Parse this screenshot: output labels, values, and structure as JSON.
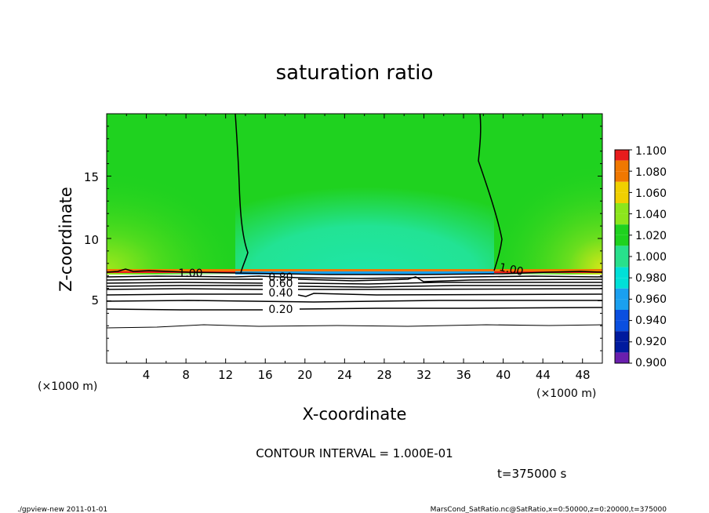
{
  "chart_data": {
    "type": "heatmap",
    "title": "saturation ratio",
    "xlabel": "X-coordinate",
    "ylabel": "Z-coordinate",
    "x_unit": "(×1000 m)",
    "y_unit": "(×1000 m)",
    "xlim": [
      0,
      50
    ],
    "ylim": [
      0,
      20
    ],
    "x_ticks": [
      "4",
      "8",
      "12",
      "16",
      "20",
      "24",
      "28",
      "32",
      "36",
      "40",
      "44",
      "48"
    ],
    "y_ticks": [
      "5",
      "10",
      "15"
    ],
    "colorbar": {
      "levels": [
        "0.900",
        "0.920",
        "0.940",
        "0.960",
        "0.980",
        "1.000",
        "1.020",
        "1.040",
        "1.060",
        "1.080",
        "1.100"
      ],
      "colors": [
        "#6a1fae",
        "#001a9e",
        "#0a4fe0",
        "#1aa0f0",
        "#00e0d8",
        "#28e08c",
        "#1fd21f",
        "#8ce61c",
        "#f0d000",
        "#f07800",
        "#e81c1c",
        "#f89090"
      ]
    },
    "contour_labels": [
      "1.00",
      "0.80",
      "0.60",
      "0.40",
      "0.20",
      "1.00"
    ],
    "contour_interval": "CONTOUR INTERVAL = 1.000E-01",
    "time": "t=375000 s",
    "footer_left": "./gpview-new  2011-01-01",
    "footer_right": "MarsCond_SatRatio.nc@SatRatio,x=0:50000,z=0:20000,t=375000"
  }
}
